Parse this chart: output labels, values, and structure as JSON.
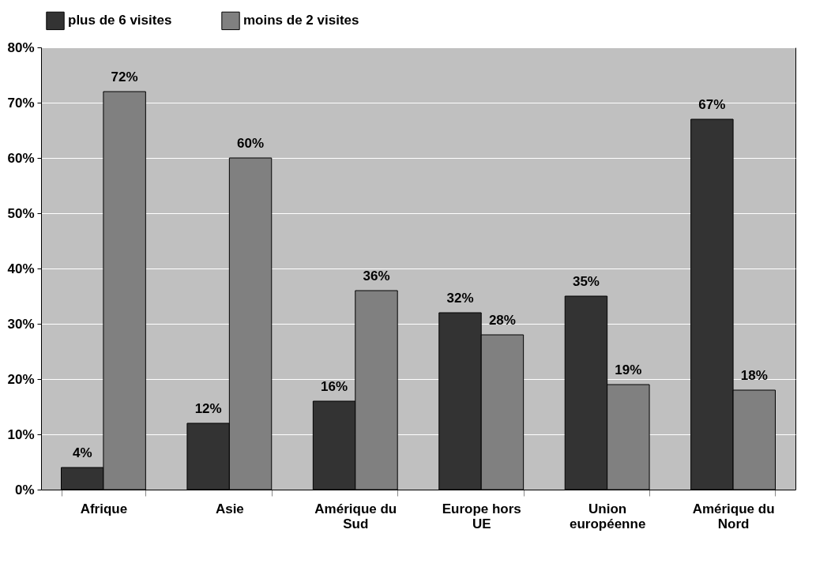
{
  "chart_data": {
    "type": "bar",
    "categories": [
      "Afrique",
      "Asie",
      "Amérique du Sud",
      "Europe hors UE",
      "Union européenne",
      "Amérique du Nord"
    ],
    "series": [
      {
        "name": "plus de 6 visites",
        "color": "#333333",
        "values": [
          4,
          12,
          16,
          32,
          35,
          67
        ],
        "value_labels": [
          "4%",
          "12%",
          "16%",
          "32%",
          "35%",
          "67%"
        ]
      },
      {
        "name": "moins de 2 visites",
        "color": "#808080",
        "values": [
          72,
          60,
          36,
          28,
          19,
          18
        ],
        "value_labels": [
          "72%",
          "60%",
          "36%",
          "28%",
          "19%",
          "18%"
        ]
      }
    ],
    "ylim": [
      0,
      80
    ],
    "yticks": [
      {
        "value": 0,
        "label": "0%"
      },
      {
        "value": 10,
        "label": "10%"
      },
      {
        "value": 20,
        "label": "20%"
      },
      {
        "value": 30,
        "label": "30%"
      },
      {
        "value": 40,
        "label": "40%"
      },
      {
        "value": 50,
        "label": "50%"
      },
      {
        "value": 60,
        "label": "60%"
      },
      {
        "value": 70,
        "label": "70%"
      },
      {
        "value": 80,
        "label": "80%"
      }
    ],
    "grid": "y",
    "legend": "top"
  }
}
